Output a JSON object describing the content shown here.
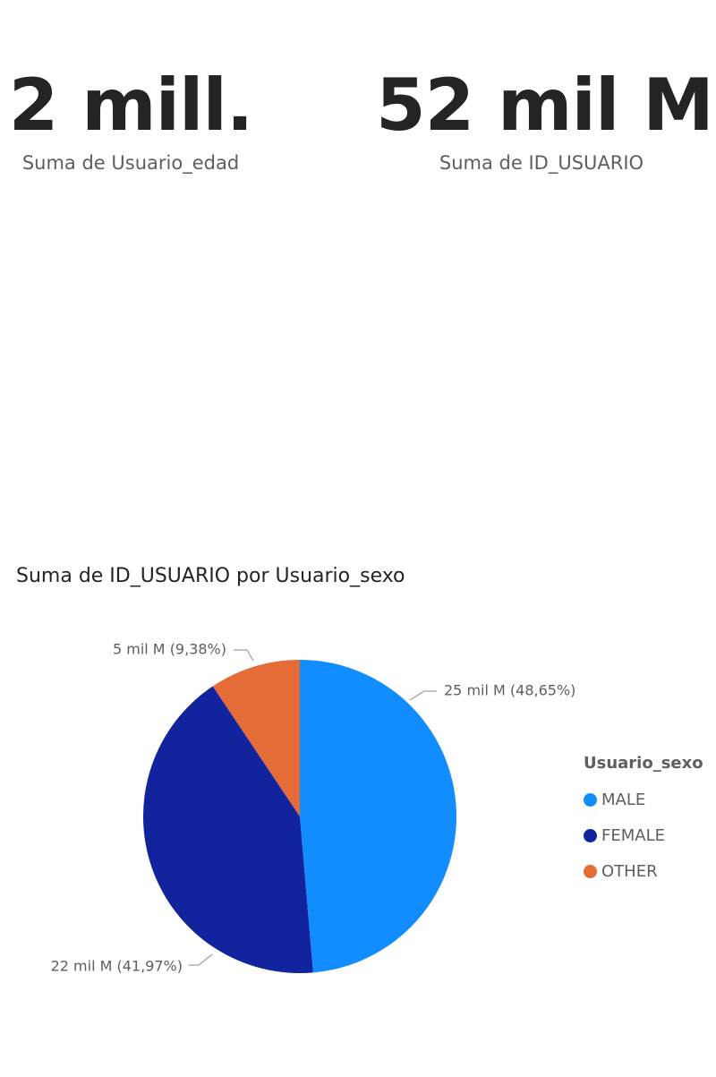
{
  "cards": [
    {
      "value": "2 mill.",
      "label": "Suma de Usuario_edad"
    },
    {
      "value": "52 mil M",
      "label": "Suma de ID_USUARIO"
    }
  ],
  "chart_data": {
    "type": "pie",
    "title": "Suma de ID_USUARIO por Usuario_sexo",
    "legend_title": "Usuario_sexo",
    "legend_position": "right",
    "slices": [
      {
        "name": "MALE",
        "percent": 48.65,
        "label": "25 mil M (48,65%)",
        "color": "#118DFF"
      },
      {
        "name": "FEMALE",
        "percent": 41.97,
        "label": "22 mil M (41,97%)",
        "color": "#12239E"
      },
      {
        "name": "OTHER",
        "percent": 9.38,
        "label": "5 mil M (9,38%)",
        "color": "#E66C37"
      }
    ]
  }
}
